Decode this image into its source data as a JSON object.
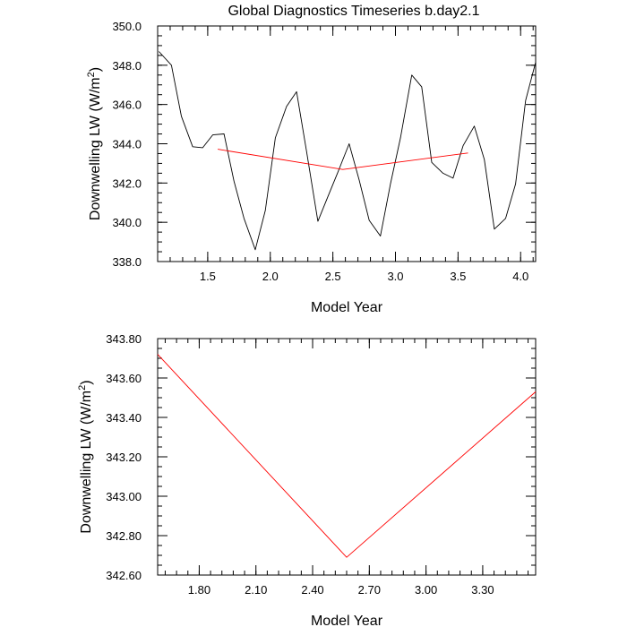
{
  "title": "Global Diagnostics Timeseries b.day2.1",
  "chart_data": [
    {
      "type": "line",
      "xlabel": "Model Year",
      "ylabel": "Downwelling LW (W/m",
      "ylabel_sup": "2",
      "ylabel_close": ")",
      "xlim": [
        1.1,
        4.12
      ],
      "ylim": [
        338.0,
        350.0
      ],
      "xticks": [
        1.5,
        2.0,
        2.5,
        3.0,
        3.5,
        4.0
      ],
      "xtick_labels": [
        "1.5",
        "2.0",
        "2.5",
        "3.0",
        "3.5",
        "4.0"
      ],
      "yticks": [
        338,
        340,
        342,
        344,
        346,
        348,
        350
      ],
      "ytick_labels": [
        "338.0",
        "340.0",
        "342.0",
        "344.0",
        "346.0",
        "348.0",
        "350.0"
      ],
      "series": [
        {
          "color": "#000000",
          "x": [
            1.11,
            1.21,
            1.29,
            1.38,
            1.46,
            1.54,
            1.63,
            1.71,
            1.79,
            1.88,
            1.96,
            2.04,
            2.13,
            2.21,
            2.29,
            2.38,
            2.46,
            2.54,
            2.63,
            2.71,
            2.79,
            2.88,
            2.96,
            3.04,
            3.13,
            3.21,
            3.29,
            3.38,
            3.46,
            3.54,
            3.63,
            3.71,
            3.79,
            3.88,
            3.96,
            4.04,
            4.12
          ],
          "y": [
            348.7,
            348.0,
            345.4,
            343.85,
            343.8,
            344.45,
            344.5,
            342.1,
            340.2,
            338.6,
            340.6,
            344.3,
            345.9,
            346.65,
            343.6,
            340.05,
            341.3,
            342.55,
            344.0,
            342.15,
            340.1,
            339.3,
            341.95,
            344.3,
            347.5,
            346.9,
            343.05,
            342.5,
            342.25,
            343.9,
            344.9,
            343.2,
            339.65,
            340.2,
            341.95,
            346.2,
            348.15
          ]
        },
        {
          "color": "#ff0000",
          "x": [
            1.58,
            2.58,
            3.58
          ],
          "y": [
            343.72,
            342.69,
            343.53
          ]
        }
      ]
    },
    {
      "type": "line",
      "xlabel": "Model Year",
      "ylabel": "Downwelling LW (W/m",
      "ylabel_sup": "2",
      "ylabel_close": ")",
      "xlim": [
        1.58,
        3.58
      ],
      "ylim": [
        342.6,
        343.8
      ],
      "xticks": [
        1.8,
        2.1,
        2.4,
        2.7,
        3.0,
        3.3
      ],
      "xtick_labels": [
        "1.80",
        "2.10",
        "2.40",
        "2.70",
        "3.00",
        "3.30"
      ],
      "yticks": [
        342.6,
        342.8,
        343.0,
        343.2,
        343.4,
        343.6,
        343.8
      ],
      "ytick_labels": [
        "342.60",
        "342.80",
        "343.00",
        "343.20",
        "343.40",
        "343.60",
        "343.80"
      ],
      "series": [
        {
          "color": "#ff0000",
          "x": [
            1.58,
            2.58,
            3.58
          ],
          "y": [
            343.72,
            342.69,
            343.53
          ]
        }
      ]
    }
  ]
}
